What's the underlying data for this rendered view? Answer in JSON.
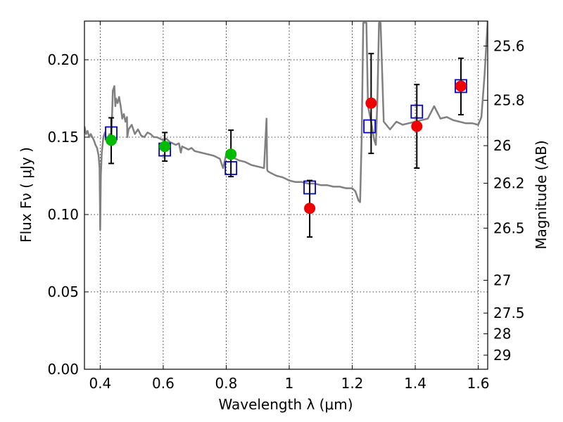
{
  "chart_data": {
    "type": "scatter",
    "xlabel": "Wavelength  λ (μm)",
    "ylabel": "Flux  Fν  ( μJy )",
    "y2label": "Magnitude (AB)",
    "xlim": [
      0.35,
      1.63
    ],
    "ylim": [
      0.0,
      0.225
    ],
    "grid": true,
    "x_ticks": [
      0.4,
      0.6,
      0.8,
      1.0,
      1.2,
      1.4,
      1.6
    ],
    "x_tick_labels": [
      "0.4",
      "0.6",
      "0.8",
      "1",
      "1.2",
      "1.4",
      "1.6"
    ],
    "y_ticks": [
      0.0,
      0.05,
      0.1,
      0.15,
      0.2
    ],
    "y_tick_labels": [
      "0.00",
      "0.05",
      "0.10",
      "0.15",
      "0.20"
    ],
    "y2_ticks": [
      {
        "label": "25.6",
        "flux": 0.2089
      },
      {
        "label": "25.8",
        "flux": 0.1738
      },
      {
        "label": "26",
        "flux": 0.1445
      },
      {
        "label": "26.2",
        "flux": 0.1202
      },
      {
        "label": "26.5",
        "flux": 0.0912
      },
      {
        "label": "27",
        "flux": 0.0575
      },
      {
        "label": "27.5",
        "flux": 0.0363
      },
      {
        "label": "28",
        "flux": 0.0229
      },
      {
        "label": "29",
        "flux": 0.0091
      }
    ],
    "colors": {
      "model": "#808080",
      "model_photometry": "#0000cc",
      "obs_green": "#00bb00",
      "obs_red": "#ee0000",
      "errorbar": "#000000"
    },
    "series": [
      {
        "kind": "line",
        "x": [
          0.35,
          0.355,
          0.36,
          0.365,
          0.37,
          0.375,
          0.38,
          0.385,
          0.39,
          0.395,
          0.398,
          0.4,
          0.402,
          0.405,
          0.41,
          0.415,
          0.42,
          0.425,
          0.43,
          0.432,
          0.435,
          0.44,
          0.445,
          0.448,
          0.45,
          0.455,
          0.46,
          0.465,
          0.47,
          0.475,
          0.48,
          0.485,
          0.486,
          0.49,
          0.5,
          0.51,
          0.52,
          0.53,
          0.54,
          0.55,
          0.56,
          0.57,
          0.58,
          0.59,
          0.6,
          0.61,
          0.62,
          0.63,
          0.64,
          0.65,
          0.656,
          0.66,
          0.67,
          0.68,
          0.69,
          0.7,
          0.72,
          0.74,
          0.76,
          0.78,
          0.79,
          0.8,
          0.82,
          0.84,
          0.86,
          0.88,
          0.9,
          0.92,
          0.928,
          0.93,
          0.932,
          0.94,
          0.96,
          0.98,
          1.0,
          1.02,
          1.04,
          1.06,
          1.08,
          1.1,
          1.12,
          1.14,
          1.16,
          1.18,
          1.2,
          1.21,
          1.22,
          1.225,
          1.23,
          1.235,
          1.24,
          1.245,
          1.25,
          1.255,
          1.26,
          1.27,
          1.275,
          1.28,
          1.285,
          1.29,
          1.3,
          1.32,
          1.34,
          1.36,
          1.38,
          1.4,
          1.42,
          1.44,
          1.46,
          1.48,
          1.5,
          1.52,
          1.54,
          1.56,
          1.58,
          1.6,
          1.61,
          1.62,
          1.63
        ],
        "y": [
          0.157,
          0.152,
          0.154,
          0.15,
          0.152,
          0.15,
          0.148,
          0.145,
          0.143,
          0.138,
          0.13,
          0.09,
          0.125,
          0.14,
          0.15,
          0.153,
          0.148,
          0.15,
          0.152,
          0.148,
          0.145,
          0.18,
          0.183,
          0.17,
          0.175,
          0.172,
          0.176,
          0.17,
          0.162,
          0.165,
          0.16,
          0.163,
          0.15,
          0.155,
          0.158,
          0.152,
          0.155,
          0.151,
          0.15,
          0.153,
          0.152,
          0.15,
          0.15,
          0.149,
          0.148,
          0.149,
          0.147,
          0.146,
          0.145,
          0.146,
          0.14,
          0.144,
          0.143,
          0.142,
          0.143,
          0.141,
          0.14,
          0.139,
          0.138,
          0.136,
          0.13,
          0.139,
          0.137,
          0.135,
          0.134,
          0.132,
          0.131,
          0.13,
          0.162,
          0.129,
          0.128,
          0.127,
          0.125,
          0.124,
          0.122,
          0.121,
          0.121,
          0.12,
          0.12,
          0.119,
          0.119,
          0.118,
          0.118,
          0.117,
          0.117,
          0.115,
          0.109,
          0.108,
          0.15,
          0.224,
          0.224,
          0.224,
          0.17,
          0.165,
          0.16,
          0.148,
          0.145,
          0.175,
          0.224,
          0.224,
          0.16,
          0.155,
          0.16,
          0.158,
          0.159,
          0.16,
          0.161,
          0.162,
          0.17,
          0.162,
          0.163,
          0.161,
          0.16,
          0.159,
          0.159,
          0.158,
          0.163,
          0.19,
          0.225
        ]
      },
      {
        "kind": "markers",
        "marker": "square",
        "x": [
          0.435,
          0.605,
          0.815,
          1.065,
          1.255,
          1.405,
          1.545
        ],
        "y": [
          0.1525,
          0.142,
          0.13,
          0.1175,
          0.157,
          0.1665,
          0.183
        ]
      },
      {
        "kind": "markers",
        "marker": "circle",
        "color_key": "obs_green",
        "x": [
          0.435,
          0.605,
          0.815
        ],
        "y": [
          0.148,
          0.144,
          0.139
        ],
        "yerr_low": [
          0.133,
          0.1345,
          0.1245
        ],
        "yerr_high": [
          0.1625,
          0.153,
          0.1545
        ]
      },
      {
        "kind": "markers",
        "marker": "circle",
        "color_key": "obs_red",
        "x": [
          1.065,
          1.26,
          1.405,
          1.545
        ],
        "y": [
          0.104,
          0.172,
          0.157,
          0.183
        ],
        "yerr_low": [
          0.0855,
          0.1395,
          0.13,
          0.1645
        ],
        "yerr_high": [
          0.122,
          0.204,
          0.184,
          0.201
        ]
      }
    ]
  }
}
